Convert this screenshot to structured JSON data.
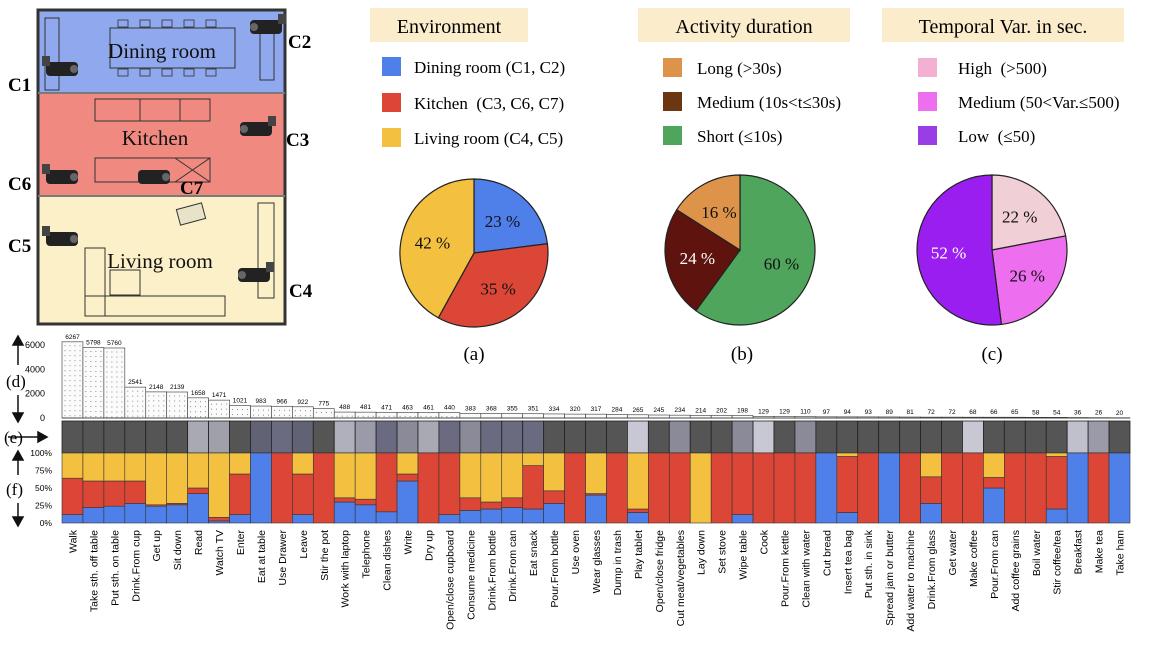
{
  "floorplan": {
    "rooms": [
      {
        "label": "Dining room",
        "color": "#8fa8ee"
      },
      {
        "label": "Kitchen",
        "color": "#f08a80"
      },
      {
        "label": "Living room",
        "color": "#fbf0c8"
      }
    ],
    "cameras": [
      "C1",
      "C2",
      "C3",
      "C4",
      "C5",
      "C6",
      "C7"
    ]
  },
  "legends": [
    {
      "title": "Environment",
      "items": [
        {
          "label": "Dining room (C1, C2)",
          "color": "#4f7fe8"
        },
        {
          "label": "Kitchen  (C3, C6, C7)",
          "color": "#db4636"
        },
        {
          "label": "Living room (C4, C5)",
          "color": "#f3c040"
        }
      ]
    },
    {
      "title": "Activity duration",
      "items": [
        {
          "label": "Long (>30s)",
          "color": "#dd934a"
        },
        {
          "label": "Medium (10s<t≤30s)",
          "color": "#6b3712"
        },
        {
          "label": "Short (≤10s)",
          "color": "#4fa55c"
        }
      ]
    },
    {
      "title": "Temporal Var. in sec.",
      "items": [
        {
          "label": "High  (>500)",
          "color": "#f3b0d2"
        },
        {
          "label": "Medium (50<Var.≤500)",
          "color": "#ee6ef0"
        },
        {
          "label": "Low  (≤50)",
          "color": "#9b3de6"
        }
      ]
    }
  ],
  "panel_labels": [
    "(a)",
    "(b)",
    "(c)",
    "(d)",
    "(e)",
    "(f)"
  ],
  "chart_data": [
    {
      "type": "pie",
      "id": "a",
      "slices": [
        {
          "label": "23 %",
          "value": 23,
          "color": "#4f7fe8"
        },
        {
          "label": "35 %",
          "value": 35,
          "color": "#db4636"
        },
        {
          "label": "42 %",
          "value": 42,
          "color": "#f3c040"
        }
      ]
    },
    {
      "type": "pie",
      "id": "b",
      "slices": [
        {
          "label": "60 %",
          "value": 60,
          "color": "#4fa55c"
        },
        {
          "label": "24 %",
          "value": 24,
          "color": "#5e130e"
        },
        {
          "label": "16 %",
          "value": 16,
          "color": "#dd934a"
        }
      ]
    },
    {
      "type": "pie",
      "id": "c",
      "slices": [
        {
          "label": "22 %",
          "value": 22,
          "color": "#f0cfd6"
        },
        {
          "label": "26 %",
          "value": 26,
          "color": "#ee6ef0"
        },
        {
          "label": "52 %",
          "value": 52,
          "color": "#9b1ef0"
        }
      ]
    },
    {
      "type": "bar",
      "id": "d",
      "yticks": [
        "0",
        "2000",
        "4000",
        "6000"
      ],
      "ylim": [
        0,
        6500
      ],
      "categories": [
        "Walk",
        "Take sth. off table",
        "Put sth. on table",
        "Drink.From cup",
        "Get up",
        "Sit down",
        "Read",
        "Watch TV",
        "Enter",
        "Eat at table",
        "Use Drawer",
        "Leave",
        "Stir the pot",
        "Work with laptop",
        "Telephone",
        "Clean dishes",
        "Write",
        "Dry up",
        "Open/close cupboard",
        "Consume medicine",
        "Drink.From bottle",
        "Drink.From can",
        "Eat snack",
        "Pour.From bottle",
        "Use oven",
        "Wear glasses",
        "Dump in trash",
        "Play tablet",
        "Open/close fridge",
        "Cut meat/vegetables",
        "Lay down",
        "Set  stove",
        "Wipe table",
        "Cook",
        "Pour.From kettle",
        "Clean with water",
        "Cut bread",
        "Insert tea bag",
        "Put sth. in sink",
        "Spread jam or butter",
        "Add water to machine",
        "Drink.From glass",
        "Get water",
        "Make coffee",
        "Pour.From can",
        "Add coffee grains",
        "Boil water",
        "Stir coffee/tea",
        "Breakfast",
        "Make tea",
        "Take ham"
      ],
      "values": [
        6267,
        5798,
        5760,
        2541,
        2148,
        2139,
        1658,
        1471,
        1021,
        983,
        966,
        922,
        775,
        488,
        481,
        471,
        463,
        461,
        440,
        383,
        368,
        355,
        351,
        334,
        320,
        317,
        284,
        265,
        245,
        234,
        214,
        202,
        198,
        129,
        129,
        110,
        97,
        94,
        93,
        89,
        81,
        72,
        72,
        68,
        66,
        65,
        58,
        54,
        36,
        26,
        20
      ],
      "labels": [
        "6267",
        "5798",
        "5760",
        "2541",
        "2148",
        "2139",
        "1658",
        "1471",
        "1021",
        "983",
        "966",
        "922",
        "775",
        "488",
        "481",
        "471",
        "463",
        "461",
        "440",
        "383",
        "368",
        "355",
        "351",
        "334",
        "320",
        "317",
        "284",
        "265",
        "245",
        "234",
        "214",
        "202",
        "198",
        "129",
        "129",
        "110",
        "97",
        "94",
        "93",
        "89",
        "81",
        "72",
        "72",
        "68",
        "66",
        "65",
        "58",
        "54",
        "36",
        "26",
        "20"
      ]
    },
    {
      "type": "heatmap",
      "id": "e",
      "shades": [
        "#555555",
        "#555555",
        "#555555",
        "#555555",
        "#555555",
        "#555555",
        "#a9a9b4",
        "#a0a0aa",
        "#555555",
        "#626275",
        "#6a6a80",
        "#626275",
        "#555555",
        "#b0b0bc",
        "#9a9aa8",
        "#6a6a80",
        "#8a8a98",
        "#a9a9b4",
        "#6a6a80",
        "#8a8a98",
        "#6a6a80",
        "#6a6a80",
        "#6a6a80",
        "#555555",
        "#555555",
        "#555555",
        "#555555",
        "#c8c8d4",
        "#555555",
        "#8a8a98",
        "#555555",
        "#555555",
        "#8a8a98",
        "#c8c8d4",
        "#555555",
        "#8a8a98",
        "#555555",
        "#555555",
        "#555555",
        "#555555",
        "#555555",
        "#555555",
        "#555555",
        "#c8c8d4",
        "#555555",
        "#555555",
        "#555555",
        "#555555",
        "#c0c0cc",
        "#9a9aa8",
        "#555555"
      ]
    },
    {
      "type": "bar",
      "id": "f",
      "stacked": true,
      "yticks": [
        "0%",
        "25%",
        "50%",
        "75%",
        "100%"
      ],
      "ylim": [
        0,
        100
      ],
      "series_colors": [
        "#4f7fe8",
        "#db4636",
        "#f3c040"
      ],
      "dining": [
        12,
        22,
        24,
        28,
        24,
        26,
        42,
        3,
        12,
        100,
        0,
        12,
        0,
        30,
        26,
        16,
        60,
        0,
        12,
        18,
        20,
        22,
        20,
        28,
        0,
        40,
        0,
        15,
        0,
        0,
        0,
        0,
        12,
        0,
        0,
        0,
        100,
        15,
        0,
        100,
        0,
        28,
        0,
        0,
        50,
        0,
        0,
        20,
        100,
        0,
        100
      ],
      "kitchen": [
        52,
        38,
        36,
        32,
        2,
        2,
        8,
        5,
        58,
        0,
        100,
        58,
        100,
        6,
        8,
        84,
        10,
        100,
        88,
        18,
        10,
        14,
        62,
        18,
        100,
        2,
        100,
        5,
        100,
        100,
        0,
        100,
        88,
        100,
        100,
        100,
        0,
        80,
        100,
        0,
        100,
        38,
        100,
        100,
        15,
        100,
        100,
        75,
        0,
        100,
        0
      ],
      "living": [
        36,
        40,
        40,
        40,
        74,
        72,
        50,
        92,
        30,
        0,
        0,
        30,
        0,
        64,
        66,
        0,
        30,
        0,
        0,
        64,
        70,
        64,
        18,
        54,
        0,
        58,
        0,
        80,
        0,
        0,
        100,
        0,
        0,
        0,
        0,
        0,
        0,
        5,
        0,
        0,
        0,
        34,
        0,
        0,
        35,
        0,
        0,
        5,
        0,
        0,
        0
      ]
    }
  ]
}
